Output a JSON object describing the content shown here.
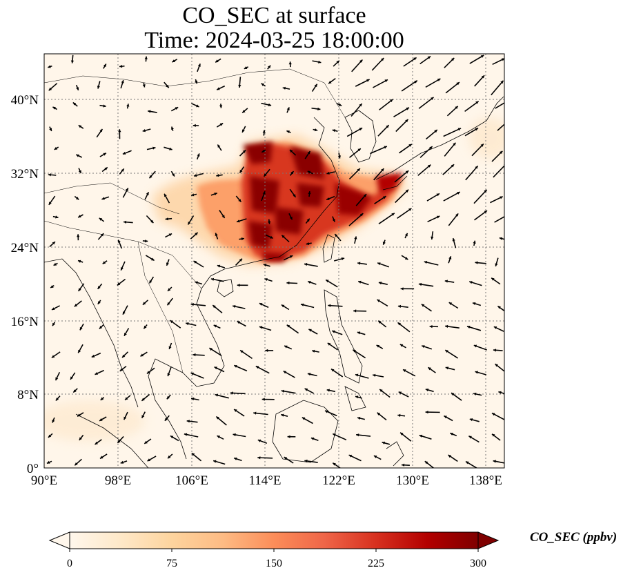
{
  "title": {
    "line1": "CO_SEC at surface",
    "line2": "Time: 2024-03-25 18:00:00"
  },
  "map": {
    "lon_range": [
      90,
      140
    ],
    "lat_range": [
      0,
      44
    ],
    "lon_ticks": [
      "90°E",
      "98°E",
      "106°E",
      "114°E",
      "122°E",
      "130°E",
      "138°E"
    ],
    "lat_ticks": [
      "0°",
      "8°N",
      "16°N",
      "24°N",
      "32°N",
      "40°N"
    ],
    "gridlines": true,
    "field": "CO_SEC",
    "colormap": "OrRd",
    "overlay": "wind vectors"
  },
  "colorbar": {
    "label": "CO_SEC (ppbv)",
    "ticks": [
      "0",
      "75",
      "150",
      "225",
      "300"
    ],
    "range": [
      0,
      300
    ],
    "extend": "both",
    "colors": [
      "#fff7ec",
      "#fee8c8",
      "#fdd49e",
      "#fdbb84",
      "#fc8d59",
      "#ef6548",
      "#d7301f",
      "#b30000",
      "#7f0000"
    ]
  }
}
